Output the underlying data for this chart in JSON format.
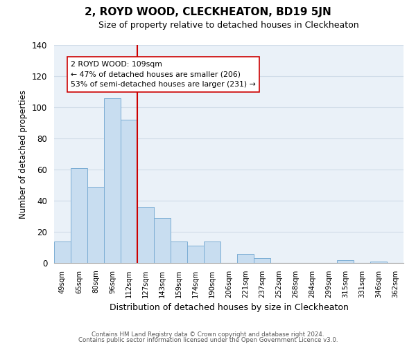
{
  "title": "2, ROYD WOOD, CLECKHEATON, BD19 5JN",
  "subtitle": "Size of property relative to detached houses in Cleckheaton",
  "xlabel": "Distribution of detached houses by size in Cleckheaton",
  "ylabel": "Number of detached properties",
  "bar_labels": [
    "49sqm",
    "65sqm",
    "80sqm",
    "96sqm",
    "112sqm",
    "127sqm",
    "143sqm",
    "159sqm",
    "174sqm",
    "190sqm",
    "206sqm",
    "221sqm",
    "237sqm",
    "252sqm",
    "268sqm",
    "284sqm",
    "299sqm",
    "315sqm",
    "331sqm",
    "346sqm",
    "362sqm"
  ],
  "bar_values": [
    14,
    61,
    49,
    106,
    92,
    36,
    29,
    14,
    11,
    14,
    0,
    6,
    3,
    0,
    0,
    0,
    0,
    2,
    0,
    1,
    0
  ],
  "bar_color": "#c8ddf0",
  "bar_edge_color": "#7badd4",
  "vline_color": "#cc0000",
  "ylim": [
    0,
    140
  ],
  "yticks": [
    0,
    20,
    40,
    60,
    80,
    100,
    120,
    140
  ],
  "annotation_title": "2 ROYD WOOD: 109sqm",
  "annotation_line1": "← 47% of detached houses are smaller (206)",
  "annotation_line2": "53% of semi-detached houses are larger (231) →",
  "annotation_box_color": "#ffffff",
  "annotation_box_edge": "#cc0000",
  "footer1": "Contains HM Land Registry data © Crown copyright and database right 2024.",
  "footer2": "Contains public sector information licensed under the Open Government Licence v3.0.",
  "grid_color": "#d0dce8",
  "background_color": "#eaf1f8"
}
